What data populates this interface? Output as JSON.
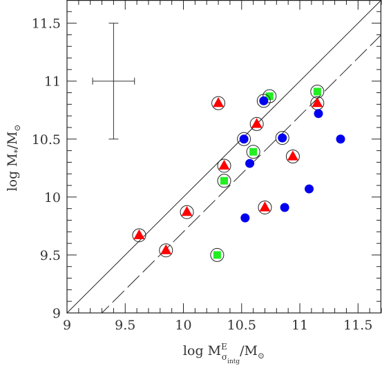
{
  "chart_data": {
    "type": "scatter",
    "xlabel": {
      "prefix": "log  M",
      "superscript": "E",
      "subscript": "σ",
      "subsubscript": "intg",
      "suffix": "/M",
      "sun_subscript": "⊙"
    },
    "ylabel": {
      "prefix": "log  M",
      "subscript": "*",
      "suffix": "/M",
      "sun_subscript": "⊙"
    },
    "xlim": [
      9,
      11.7
    ],
    "ylim": [
      9,
      11.7
    ],
    "xticks": [
      9,
      9.5,
      10,
      10.5,
      11,
      11.5
    ],
    "yticks": [
      9,
      9.5,
      10,
      10.5,
      11,
      11.5
    ],
    "xtick_labels": [
      "9",
      "9.5",
      "10",
      "10.5",
      "11",
      "11.5"
    ],
    "ytick_labels": [
      "9",
      "9.5",
      "10",
      "10.5",
      "11",
      "11.5"
    ],
    "lines": [
      {
        "style": "solid",
        "slope": 1,
        "intercept": 0
      },
      {
        "style": "dashed",
        "slope": 1,
        "intercept": -0.3
      }
    ],
    "error_bar": {
      "x": 9.4,
      "y": 11.0,
      "xerr": 0.18,
      "yerr": 0.5
    },
    "colors": {
      "triangle": "#ff0000",
      "square": "#22ee22",
      "circle": "#0000ee",
      "ring": "#222222"
    },
    "series": [
      {
        "marker": "triangle",
        "points": [
          {
            "x": 9.62,
            "y": 9.67,
            "ring": true
          },
          {
            "x": 9.85,
            "y": 9.54,
            "ring": true
          },
          {
            "x": 10.03,
            "y": 9.87,
            "ring": true
          },
          {
            "x": 10.3,
            "y": 10.81,
            "ring": true
          },
          {
            "x": 10.35,
            "y": 10.27,
            "ring": true
          },
          {
            "x": 10.63,
            "y": 10.63,
            "ring": true
          },
          {
            "x": 10.7,
            "y": 9.91,
            "ring": true
          },
          {
            "x": 10.94,
            "y": 10.35,
            "ring": true
          },
          {
            "x": 11.15,
            "y": 10.81,
            "ring": true
          }
        ]
      },
      {
        "marker": "square",
        "points": [
          {
            "x": 10.29,
            "y": 9.5,
            "ring": true
          },
          {
            "x": 10.35,
            "y": 10.14,
            "ring": true
          },
          {
            "x": 10.6,
            "y": 10.39,
            "ring": true
          },
          {
            "x": 10.74,
            "y": 10.87,
            "ring": true
          },
          {
            "x": 11.15,
            "y": 10.91,
            "ring": true
          }
        ]
      },
      {
        "marker": "circle",
        "points": [
          {
            "x": 10.52,
            "y": 10.5,
            "ring": true
          },
          {
            "x": 10.69,
            "y": 10.83,
            "ring": true
          },
          {
            "x": 10.85,
            "y": 10.51,
            "ring": true
          },
          {
            "x": 10.53,
            "y": 9.82,
            "ring": false
          },
          {
            "x": 10.57,
            "y": 10.29,
            "ring": false
          },
          {
            "x": 10.87,
            "y": 9.91,
            "ring": false
          },
          {
            "x": 11.08,
            "y": 10.07,
            "ring": false
          },
          {
            "x": 11.16,
            "y": 10.72,
            "ring": false
          },
          {
            "x": 11.35,
            "y": 10.5,
            "ring": false
          }
        ]
      }
    ]
  }
}
